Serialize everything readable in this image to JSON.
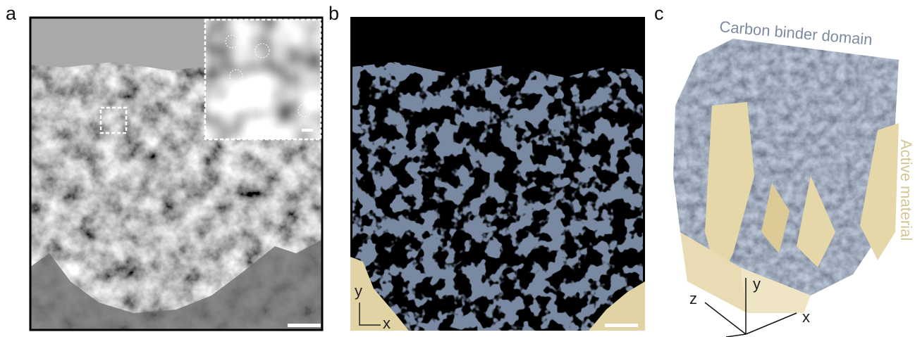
{
  "panels": [
    {
      "letter": "a"
    },
    {
      "letter": "b",
      "axes": {
        "y": "y",
        "x": "x"
      }
    },
    {
      "letter": "c",
      "labels": {
        "carbon": "Carbon binder domain",
        "active": "Active material"
      },
      "axes": {
        "z": "z",
        "y": "y",
        "x": "x"
      }
    }
  ]
}
